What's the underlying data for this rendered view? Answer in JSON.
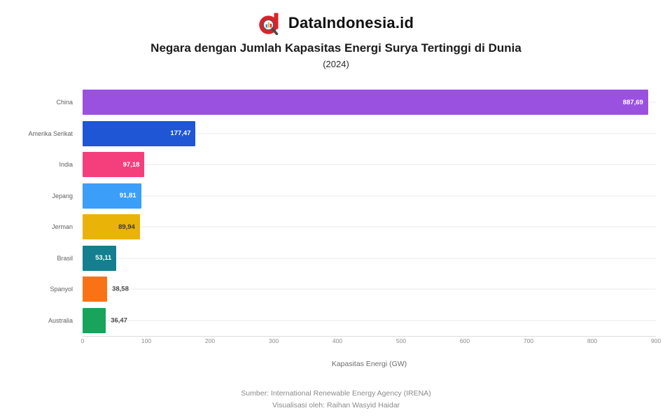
{
  "header": {
    "brand": "DataIndonesia.id",
    "logo_icon": "dataindonesia-magnifier-d-logo",
    "title": "Negara dengan Jumlah Kapasitas Energi Surya Tertinggi di Dunia",
    "subtitle": "(2024)"
  },
  "chart_data": {
    "type": "bar",
    "orientation": "horizontal",
    "title": "Negara dengan Jumlah Kapasitas Energi Surya Tertinggi di Dunia (2024)",
    "xlabel": "Kapasitas Energi (GW)",
    "xlim": [
      0,
      900
    ],
    "xticks": [
      "0",
      "100",
      "200",
      "300",
      "400",
      "500",
      "600",
      "700",
      "800",
      "900"
    ],
    "grid": "faint horizontal row lines, white background",
    "categories": [
      "China",
      "Amerika Serikat",
      "India",
      "Jepang",
      "Jerman",
      "Brasil",
      "Spanyol",
      "Australia"
    ],
    "values": [
      887.69,
      177.47,
      97.18,
      91.81,
      89.94,
      53.11,
      38.58,
      36.47
    ],
    "value_labels": [
      "887,69",
      "177,47",
      "97,18",
      "91,81",
      "89,94",
      "53,11",
      "38,58",
      "36,47"
    ],
    "bar_colors": [
      "#9b51e0",
      "#1e56d6",
      "#f43f7c",
      "#3b9ef8",
      "#eab308",
      "#147f8e",
      "#f97316",
      "#18a45b"
    ],
    "label_inside": [
      true,
      true,
      true,
      true,
      true,
      true,
      false,
      false
    ],
    "label_colors": [
      "#ffffff",
      "#ffffff",
      "#ffffff",
      "#ffffff",
      "#3a3a3a",
      "#ffffff",
      "#4a4a4a",
      "#4a4a4a"
    ]
  },
  "footer": {
    "source": "Sumber: International Renewable Energy Agency (IRENA)",
    "credit": "Visualisasi oleh: Raihan Wasyid Haidar"
  },
  "colors": {
    "brand_red": "#d8232a",
    "handle_gray": "#4a4a4a",
    "grid": "#f4f4f4"
  }
}
